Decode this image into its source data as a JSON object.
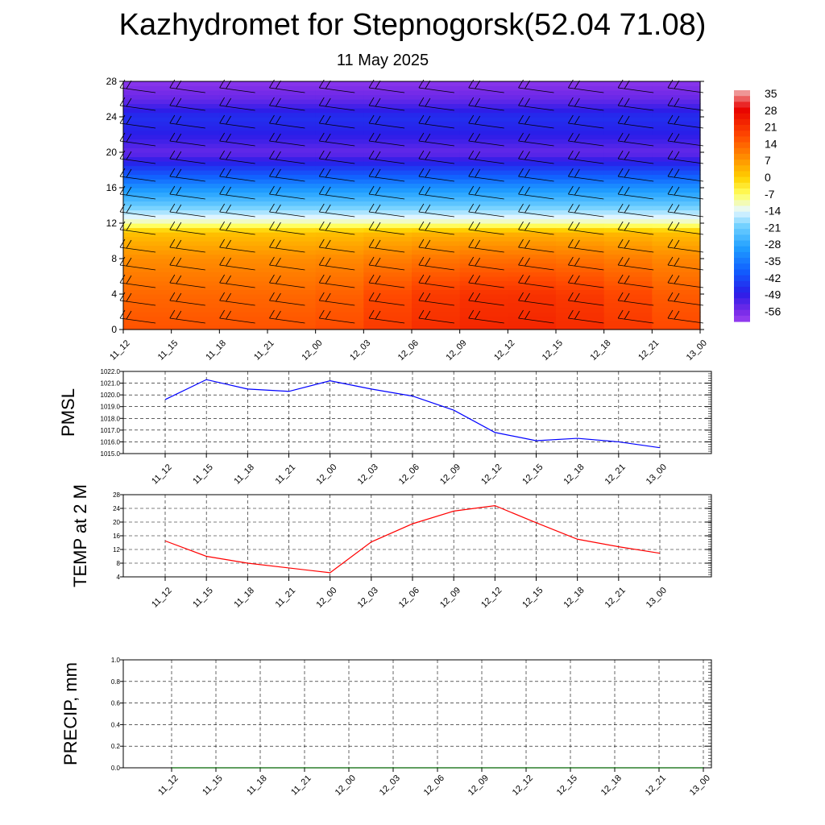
{
  "title": "Kazhydromet for Stepnogorsk(52.04 71.08)",
  "subtitle": "11 May 2025",
  "chart_data": [
    {
      "type": "heatmap",
      "x_tick_labels": [
        "11_12",
        "11_15",
        "11_18",
        "11_21",
        "12_00",
        "12_03",
        "12_06",
        "12_09",
        "12_12",
        "12_15",
        "12_18",
        "12_21",
        "13_00"
      ],
      "y_ticks": [
        0,
        4,
        8,
        12,
        16,
        20,
        24,
        28
      ],
      "ylim": [
        0,
        28
      ],
      "colorbar_labels": [
        "35",
        "28",
        "21",
        "14",
        "7",
        "0",
        "-7",
        "-14",
        "-21",
        "-28",
        "-35",
        "-42",
        "-49",
        "-56"
      ],
      "color_stops": [
        {
          "value": 38,
          "color": "#f0b0b0"
        },
        {
          "value": 30,
          "color": "#e80000"
        },
        {
          "value": 18,
          "color": "#ff4a00"
        },
        {
          "value": 8,
          "color": "#ff9400"
        },
        {
          "value": 0,
          "color": "#ffd200"
        },
        {
          "value": -7,
          "color": "#ffff60"
        },
        {
          "value": -14,
          "color": "#e8f8ff"
        },
        {
          "value": -21,
          "color": "#70d0ff"
        },
        {
          "value": -30,
          "color": "#20a0ff"
        },
        {
          "value": -40,
          "color": "#1060ff"
        },
        {
          "value": -50,
          "color": "#2a1ce8"
        },
        {
          "value": -58,
          "color": "#7a2ce8"
        },
        {
          "value": -62,
          "color": "#9a40f0"
        }
      ],
      "temperature_by_height": [
        {
          "height": 0,
          "t_start": 17,
          "t_end": 24
        },
        {
          "height": 4,
          "t_start": 14,
          "t_end": 22
        },
        {
          "height": 8,
          "t_start": 9,
          "t_end": 13
        },
        {
          "height": 11,
          "t_start": 2,
          "t_end": 4
        },
        {
          "height": 12,
          "t_start": -10,
          "t_end": -10
        },
        {
          "height": 14,
          "t_start": -22,
          "t_end": -22
        },
        {
          "height": 16,
          "t_start": -32,
          "t_end": -32
        },
        {
          "height": 18,
          "t_start": -44,
          "t_end": -44
        },
        {
          "height": 20,
          "t_start": -56,
          "t_end": -56
        },
        {
          "height": 22,
          "t_start": -50,
          "t_end": -50
        },
        {
          "height": 24,
          "t_start": -47,
          "t_end": -47
        },
        {
          "height": 26,
          "t_start": -56,
          "t_end": -56
        },
        {
          "height": 28,
          "t_start": -60,
          "t_end": -60
        }
      ],
      "wind_barb_heights": [
        1,
        3,
        5,
        7,
        9,
        11,
        13,
        15,
        17,
        19,
        21,
        23,
        25,
        27
      ]
    },
    {
      "type": "line",
      "ylabel": "PMSL",
      "x": [
        "11_12",
        "11_15",
        "11_18",
        "11_21",
        "12_00",
        "12_03",
        "12_06",
        "12_09",
        "12_12",
        "12_15",
        "12_18",
        "12_21",
        "13_00"
      ],
      "y_ticks": [
        "1015.0",
        "1016.0",
        "1017.0",
        "1018.0",
        "1019.0",
        "1020.0",
        "1021.0",
        "1022.0"
      ],
      "ylim": [
        1015,
        1022
      ],
      "series": [
        {
          "values": [
            1019.6,
            1021.3,
            1020.5,
            1020.3,
            1021.2,
            1020.5,
            1019.9,
            1018.7,
            1016.8,
            1016.1,
            1016.3,
            1016.0,
            1015.5
          ],
          "color": "#0000ff"
        }
      ]
    },
    {
      "type": "line",
      "ylabel": "TEMP at 2 M",
      "x": [
        "11_12",
        "11_15",
        "11_18",
        "11_21",
        "12_00",
        "12_03",
        "12_06",
        "12_09",
        "12_12",
        "12_15",
        "12_18",
        "12_21",
        "13_00"
      ],
      "y_ticks": [
        "4",
        "8",
        "12",
        "16",
        "20",
        "24",
        "28"
      ],
      "ylim": [
        4,
        28
      ],
      "series": [
        {
          "values": [
            14.5,
            10.0,
            8.0,
            6.6,
            5.2,
            14.2,
            19.5,
            23.2,
            24.8,
            19.8,
            15.0,
            12.8,
            10.9
          ],
          "color": "#ff0000"
        }
      ]
    },
    {
      "type": "line",
      "ylabel": "PRECIP, mm",
      "x": [
        "11_12",
        "11_15",
        "11_18",
        "11_21",
        "12_00",
        "12_03",
        "12_06",
        "12_09",
        "12_12",
        "12_15",
        "12_18",
        "12_21",
        "13_00"
      ],
      "y_ticks": [
        "0.0",
        "0.2",
        "0.4",
        "0.6",
        "0.8",
        "1.0"
      ],
      "ylim": [
        0,
        1
      ],
      "series": [
        {
          "values": [
            0,
            0,
            0,
            0,
            0,
            0,
            0,
            0,
            0,
            0,
            0,
            0,
            0
          ],
          "color": "#006400"
        }
      ]
    }
  ]
}
